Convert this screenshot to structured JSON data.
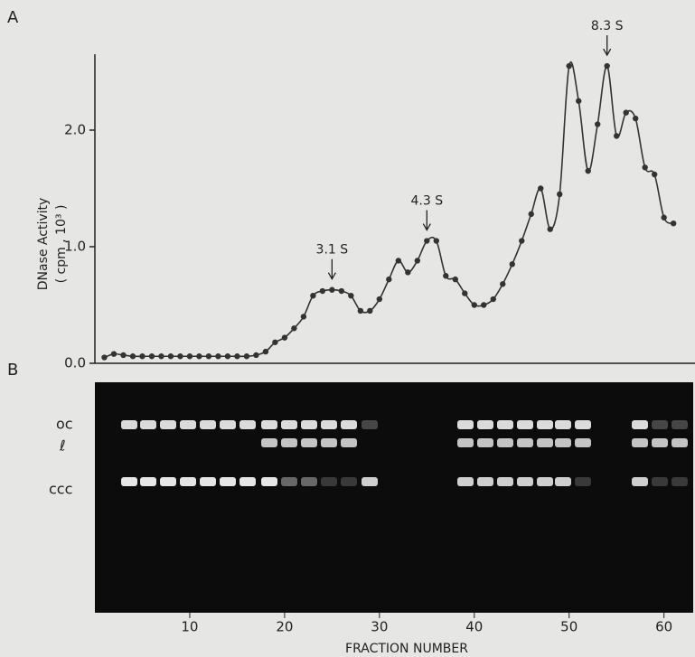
{
  "chart_data": {
    "type": "line",
    "panel_labels": [
      "A",
      "B"
    ],
    "y_label": [
      "DNase Activity",
      "( cpm , 10³ )"
    ],
    "x_label": "FRACTION NUMBER",
    "gel_labels": [
      "oc",
      "ℓ",
      "ccc"
    ],
    "annotations": [
      {
        "text": "3.1 S",
        "x": 25,
        "y": 0.63
      },
      {
        "text": "4.3 S",
        "x": 35,
        "y": 1.05
      },
      {
        "text": "8.3 S",
        "x": 54,
        "y": 2.55
      }
    ],
    "x": [
      1,
      2,
      3,
      4,
      5,
      6,
      7,
      8,
      9,
      10,
      11,
      12,
      13,
      14,
      15,
      16,
      17,
      18,
      19,
      20,
      21,
      22,
      23,
      24,
      25,
      26,
      27,
      28,
      29,
      30,
      31,
      32,
      33,
      34,
      35,
      36,
      37,
      38,
      39,
      40,
      41,
      42,
      43,
      44,
      45,
      46,
      47,
      48,
      49,
      50,
      51,
      52,
      53,
      54,
      55,
      56,
      57,
      58,
      59,
      60,
      61
    ],
    "series": [
      {
        "color": "#333333",
        "values": [
          0.05,
          0.08,
          0.07,
          0.06,
          0.06,
          0.06,
          0.06,
          0.06,
          0.06,
          0.06,
          0.06,
          0.06,
          0.06,
          0.06,
          0.06,
          0.06,
          0.07,
          0.1,
          0.18,
          0.22,
          0.3,
          0.4,
          0.58,
          0.62,
          0.63,
          0.62,
          0.58,
          0.45,
          0.45,
          0.55,
          0.72,
          0.88,
          0.78,
          0.88,
          1.05,
          1.05,
          0.75,
          0.72,
          0.6,
          0.5,
          0.5,
          0.55,
          0.68,
          0.85,
          1.05,
          1.28,
          1.5,
          1.15,
          1.45,
          2.55,
          2.25,
          1.65,
          2.05,
          2.55,
          1.95,
          2.15,
          2.1,
          1.68,
          1.62,
          1.25,
          1.2
        ]
      }
    ],
    "xlim": [
      0,
      62.7
    ],
    "xticks": [
      10,
      20,
      30,
      40,
      50,
      60
    ],
    "ylim": [
      0,
      2.62
    ],
    "yticks": [
      {
        "value": 0,
        "label": "0.0"
      },
      {
        "value": 1,
        "label": "1.0"
      },
      {
        "value": 2,
        "label": "2.0"
      }
    ]
  }
}
